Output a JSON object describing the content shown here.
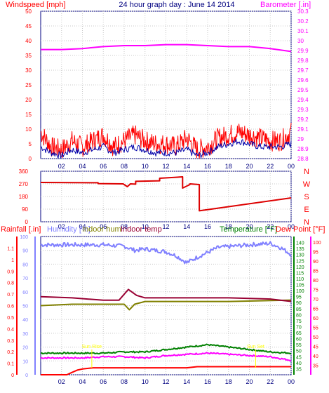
{
  "title": "24 hour graph day : June 14 2014",
  "colors": {
    "wind": "#ff0000",
    "gust": "#ff0000",
    "wind_avg": "#0000aa",
    "barometer": "#ff00ff",
    "direction": "#dd0000",
    "rain_axis": "#ff0000",
    "rain": "#ff0000",
    "humidity": "#8080ff",
    "indoor_hum": "#808000",
    "indoor_temp": "#990033",
    "temperature": "#008000",
    "dew_point": "#ff00ff",
    "dew_axis": "#ff0000",
    "day_label": "#ffff00",
    "frame": "#000080",
    "grid": "#c8c8c8"
  },
  "chart_data": [
    {
      "type": "line",
      "panel": "wind-barometer",
      "ylabel_left": "Windspeed [mph]",
      "ylabel_right": "Barometer [.in]",
      "ylim_left": [
        0,
        50
      ],
      "yticks_left": [
        0,
        5,
        10,
        15,
        20,
        25,
        30,
        35,
        40,
        45,
        50
      ],
      "ylim_right": [
        28.8,
        30.3
      ],
      "yticks_right": [
        28.8,
        28.9,
        29,
        29.1,
        29.2,
        29.3,
        29.4,
        29.5,
        29.6,
        29.7,
        29.8,
        29.9,
        30,
        30.1,
        30.2,
        30.3
      ],
      "xticks": [
        "02",
        "04",
        "06",
        "08",
        "10",
        "12",
        "14",
        "16",
        "18",
        "20",
        "22",
        "00"
      ],
      "grid": true,
      "series": [
        {
          "key": "gust",
          "axis": "left",
          "x": [
            0,
            1,
            2,
            3,
            4,
            5,
            6,
            7,
            8,
            9,
            10,
            11,
            12,
            13,
            14,
            15,
            16,
            17,
            18,
            19,
            20,
            21,
            22,
            23,
            24
          ],
          "values": [
            9,
            4,
            3,
            6,
            4,
            6,
            8,
            4,
            6,
            8,
            6,
            5,
            5,
            4,
            7,
            3,
            4,
            7,
            8,
            9,
            8,
            7,
            6,
            6,
            9
          ]
        },
        {
          "key": "wind_avg",
          "axis": "left",
          "x": [
            0,
            1,
            2,
            3,
            4,
            5,
            6,
            7,
            8,
            9,
            10,
            11,
            12,
            13,
            14,
            15,
            16,
            17,
            18,
            19,
            20,
            21,
            22,
            23,
            24
          ],
          "values": [
            4,
            2,
            1,
            3,
            2,
            3,
            4,
            2,
            3,
            4,
            3,
            2,
            2,
            2,
            3,
            1,
            2,
            4,
            5,
            6,
            5,
            4,
            4,
            4,
            5
          ]
        },
        {
          "key": "barometer",
          "axis": "right",
          "x": [
            0,
            2,
            4,
            6,
            8,
            10,
            12,
            14,
            16,
            18,
            20,
            22,
            24
          ],
          "values": [
            29.91,
            29.91,
            29.92,
            29.94,
            29.95,
            29.95,
            29.96,
            29.96,
            29.95,
            29.94,
            29.94,
            29.92,
            29.89
          ]
        }
      ]
    },
    {
      "type": "line",
      "panel": "wind-direction",
      "ylim": [
        0,
        360
      ],
      "yticks": [
        0,
        90,
        180,
        270,
        360
      ],
      "compass_labels": [
        "N",
        "W",
        "S",
        "E",
        "N"
      ],
      "xticks": [
        "02",
        "04",
        "06",
        "08",
        "10",
        "12",
        "14",
        "16",
        "18",
        "20",
        "22",
        "00"
      ],
      "grid": true,
      "series": [
        {
          "key": "direction",
          "x": [
            0,
            5.5,
            5.5,
            7.9,
            8.3,
            8.6,
            9.1,
            9.1,
            11.4,
            11.4,
            13.6,
            13.6,
            14.3,
            14.3,
            15.2,
            15.2,
            24
          ],
          "values": [
            280,
            278,
            272,
            270,
            250,
            270,
            268,
            288,
            292,
            310,
            320,
            240,
            265,
            270,
            265,
            78,
            170
          ]
        }
      ]
    },
    {
      "type": "line",
      "panel": "rain-humidity-temperature",
      "ylabel_rain": "Rainfall [.in]",
      "ylabel_humidity": "Humidity [%]",
      "ylabel_indoor_hum": "Indoor hum",
      "ylabel_indoor_temp": "Indoor temp",
      "ylabel_temperature": "Temperature [°F]",
      "ylabel_dew": "Dew Point [°F]",
      "rain_ylim": [
        0,
        1.2
      ],
      "rain_ticks": [
        0,
        0.1,
        0.2,
        0.3,
        0.4,
        0.5,
        0.6,
        0.7,
        0.8,
        0.9,
        1,
        1.1
      ],
      "humidity_ylim": [
        0,
        100
      ],
      "humidity_ticks": [
        0,
        10,
        20,
        30,
        40,
        50,
        60,
        70,
        80,
        90,
        100
      ],
      "temp_ylim": [
        30,
        145
      ],
      "temp_ticks": [
        35,
        40,
        45,
        50,
        55,
        60,
        65,
        70,
        75,
        80,
        85,
        90,
        95,
        100,
        105,
        110,
        115,
        120,
        125,
        130,
        135,
        140
      ],
      "dew_ylim": [
        30,
        103
      ],
      "dew_ticks": [
        35,
        40,
        45,
        50,
        55,
        60,
        65,
        70,
        75,
        80,
        85,
        90,
        95,
        100
      ],
      "xticks": [
        "02",
        "04",
        "06",
        "08",
        "10",
        "12",
        "14",
        "16",
        "18",
        "20",
        "22",
        "00"
      ],
      "day_labels": [
        {
          "text": "Sun Rise",
          "x": 4.9
        },
        {
          "text": "Sun Set",
          "x": 20.6
        }
      ],
      "grid": true,
      "series": [
        {
          "key": "rain",
          "axis": "rain",
          "x": [
            0,
            2.5,
            3,
            3.5,
            4,
            5,
            14,
            15,
            16,
            24
          ],
          "values": [
            0,
            0,
            0.02,
            0.04,
            0.05,
            0.06,
            0.06,
            0.07,
            0.07,
            0.07
          ]
        },
        {
          "key": "humidity",
          "axis": "humidity",
          "x": [
            0,
            3,
            6,
            8,
            9,
            10,
            12,
            13,
            14,
            15,
            17,
            20,
            22,
            23,
            24
          ],
          "values": [
            94,
            94,
            94,
            93,
            90,
            91,
            89,
            86,
            81,
            85,
            92,
            94,
            95,
            92,
            87
          ]
        },
        {
          "key": "indoor_hum",
          "axis": "humidity",
          "x": [
            0,
            3,
            6,
            8,
            8.5,
            9,
            10,
            14,
            18,
            24
          ],
          "values": [
            50,
            51,
            51,
            51,
            47,
            51,
            53,
            53,
            53,
            54
          ]
        },
        {
          "key": "indoor_temp",
          "axis": "temp",
          "x": [
            0,
            3,
            6,
            7.5,
            8.4,
            9.2,
            10,
            14,
            18,
            22,
            24
          ],
          "values": [
            95,
            94,
            92,
            92,
            101,
            96,
            94,
            94,
            94,
            93,
            91
          ]
        },
        {
          "key": "temperature",
          "axis": "temp",
          "x": [
            0,
            4,
            6,
            8,
            10,
            12,
            14,
            16,
            18,
            20,
            22,
            24
          ],
          "values": [
            48,
            48,
            48,
            49,
            49,
            51,
            53,
            55,
            53,
            51,
            49,
            48
          ]
        },
        {
          "key": "dew_point",
          "axis": "temp",
          "x": [
            0,
            4,
            6,
            8,
            10,
            12,
            14,
            16,
            18,
            20,
            22,
            24
          ],
          "values": [
            44,
            44,
            45,
            45,
            44,
            46,
            47,
            48,
            47,
            46,
            45,
            42
          ]
        }
      ]
    }
  ]
}
